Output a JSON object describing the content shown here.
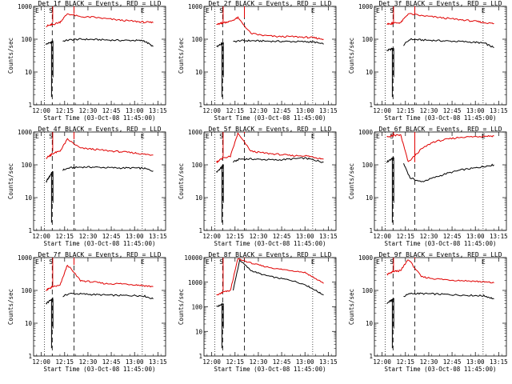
{
  "chart_data": [
    {
      "type": "line",
      "title": "Det 1f BLACK = Events, RED = LLD",
      "xlabel": "Start Time (03-Oct-08 11:45:00)",
      "ylabel": "Counts/sec",
      "ylog": true,
      "ylim": [
        1,
        1000
      ],
      "yticks": [
        "1",
        "10",
        "100",
        "1000"
      ],
      "xlim": [
        11.917,
        13.333
      ],
      "xticks": [
        "12:00",
        "12:15",
        "12:30",
        "12:45",
        "13:00",
        "13:15"
      ],
      "markers": [
        "E",
        "S",
        "E"
      ],
      "series": [
        {
          "name": "Events",
          "color": "#000000",
          "x": [
            12.05,
            12.1,
            12.12,
            12.2,
            12.3,
            12.42,
            12.55,
            12.7,
            12.85,
            13.0,
            13.1,
            13.2
          ],
          "y": [
            70,
            80,
            85,
            85,
            95,
            100,
            98,
            95,
            92,
            92,
            90,
            60
          ]
        },
        {
          "name": "LLD",
          "color": "#e00000",
          "x": [
            12.05,
            12.1,
            12.12,
            12.2,
            12.28,
            12.42,
            12.55,
            12.7,
            12.85,
            13.0,
            13.1,
            13.2
          ],
          "y": [
            250,
            270,
            280,
            330,
            600,
            480,
            470,
            420,
            380,
            350,
            330,
            320
          ]
        }
      ]
    },
    {
      "type": "line",
      "title": "Det 2f BLACK = Events, RED = LLD",
      "xlabel": "Start Time (03-Oct-08 11:45:00)",
      "ylabel": "Counts/sec",
      "ylog": true,
      "ylim": [
        1,
        1000
      ],
      "yticks": [
        "1",
        "10",
        "100",
        "1000"
      ],
      "xlim": [
        11.917,
        13.333
      ],
      "xticks": [
        "12:00",
        "12:15",
        "12:30",
        "12:45",
        "13:00",
        "13:15"
      ],
      "markers": [
        "E",
        "S",
        "E"
      ],
      "series": [
        {
          "name": "Events",
          "color": "#000000",
          "x": [
            12.05,
            12.1,
            12.12,
            12.2,
            12.3,
            12.42,
            12.55,
            12.7,
            12.85,
            13.0,
            13.1,
            13.2
          ],
          "y": [
            60,
            70,
            75,
            80,
            90,
            90,
            88,
            86,
            85,
            84,
            82,
            70
          ]
        },
        {
          "name": "LLD",
          "color": "#e00000",
          "x": [
            12.05,
            12.1,
            12.12,
            12.2,
            12.28,
            12.42,
            12.55,
            12.7,
            12.85,
            13.0,
            13.1,
            13.2
          ],
          "y": [
            280,
            300,
            320,
            350,
            450,
            150,
            130,
            120,
            120,
            115,
            110,
            100
          ]
        }
      ]
    },
    {
      "type": "line",
      "title": "Det 3f BLACK = Events, RED = LLD",
      "xlabel": "Start Time (03-Oct-08 11:45:00)",
      "ylabel": "Counts/sec",
      "ylog": true,
      "ylim": [
        1,
        1000
      ],
      "yticks": [
        "1",
        "10",
        "100",
        "1000"
      ],
      "xlim": [
        11.917,
        13.333
      ],
      "xticks": [
        "12:00",
        "12:15",
        "12:30",
        "12:45",
        "13:00",
        "13:15"
      ],
      "markers": [
        "E",
        "S",
        "E"
      ],
      "series": [
        {
          "name": "Events",
          "color": "#000000",
          "x": [
            12.05,
            12.1,
            12.12,
            12.2,
            12.3,
            12.42,
            12.55,
            12.7,
            12.85,
            13.0,
            13.1,
            13.2
          ],
          "y": [
            45,
            50,
            52,
            55,
            100,
            95,
            92,
            88,
            85,
            80,
            75,
            55
          ]
        },
        {
          "name": "LLD",
          "color": "#e00000",
          "x": [
            12.05,
            12.1,
            12.12,
            12.2,
            12.28,
            12.42,
            12.55,
            12.7,
            12.85,
            13.0,
            13.1,
            13.2
          ],
          "y": [
            280,
            300,
            310,
            320,
            600,
            520,
            480,
            430,
            390,
            350,
            320,
            300
          ]
        }
      ]
    },
    {
      "type": "line",
      "title": "Det 4f BLACK = Events, RED = LLD",
      "xlabel": "Start Time (03-Oct-08 11:45:00)",
      "ylabel": "Counts/sec",
      "ylog": true,
      "ylim": [
        1,
        1000
      ],
      "yticks": [
        "1",
        "10",
        "100",
        "1000"
      ],
      "xlim": [
        11.917,
        13.333
      ],
      "xticks": [
        "12:00",
        "12:15",
        "12:30",
        "12:45",
        "13:00",
        "13:15"
      ],
      "markers": [
        "E",
        "S",
        "E"
      ],
      "series": [
        {
          "name": "Events",
          "color": "#000000",
          "x": [
            12.05,
            12.1,
            12.12,
            12.2,
            12.3,
            12.42,
            12.55,
            12.7,
            12.85,
            13.0,
            13.1,
            13.2
          ],
          "y": [
            30,
            50,
            60,
            65,
            80,
            85,
            85,
            82,
            80,
            80,
            78,
            65
          ]
        },
        {
          "name": "LLD",
          "color": "#e00000",
          "x": [
            12.05,
            12.1,
            12.12,
            12.2,
            12.28,
            12.42,
            12.55,
            12.7,
            12.85,
            13.0,
            13.1,
            13.2
          ],
          "y": [
            160,
            200,
            220,
            260,
            600,
            320,
            300,
            270,
            250,
            230,
            210,
            200
          ]
        }
      ]
    },
    {
      "type": "line",
      "title": "Det 5f BLACK = Events, RED = LLD",
      "xlabel": "Start Time (03-Oct-08 11:45:00)",
      "ylabel": "Counts/sec",
      "ylog": true,
      "ylim": [
        1,
        1000
      ],
      "yticks": [
        "1",
        "10",
        "100",
        "1000"
      ],
      "xlim": [
        11.917,
        13.333
      ],
      "xticks": [
        "12:00",
        "12:15",
        "12:30",
        "12:45",
        "13:00",
        "13:15"
      ],
      "markers": [
        "E",
        "S",
        "E"
      ],
      "series": [
        {
          "name": "Events",
          "color": "#000000",
          "x": [
            12.05,
            12.1,
            12.12,
            12.2,
            12.3,
            12.42,
            12.55,
            12.7,
            12.85,
            13.0,
            13.1,
            13.2
          ],
          "y": [
            60,
            80,
            95,
            110,
            150,
            150,
            145,
            140,
            150,
            160,
            140,
            120
          ]
        },
        {
          "name": "LLD",
          "color": "#e00000",
          "x": [
            12.05,
            12.1,
            12.12,
            12.2,
            12.28,
            12.42,
            12.55,
            12.7,
            12.85,
            13.0,
            13.1,
            13.2
          ],
          "y": [
            120,
            150,
            160,
            180,
            900,
            260,
            230,
            210,
            190,
            190,
            170,
            150
          ]
        }
      ]
    },
    {
      "type": "line",
      "title": "Det 6f BLACK = Events, RED = LLD",
      "xlabel": "Start Time (03-Oct-08 11:45:00)",
      "ylabel": "Counts/sec",
      "ylog": true,
      "ylim": [
        1,
        1000
      ],
      "yticks": [
        "1",
        "10",
        "100",
        "1000"
      ],
      "xlim": [
        11.917,
        13.333
      ],
      "xticks": [
        "12:00",
        "12:15",
        "12:30",
        "12:45",
        "13:00",
        "13:15"
      ],
      "markers": [
        "E",
        "S",
        "E"
      ],
      "series": [
        {
          "name": "Events",
          "color": "#000000",
          "x": [
            12.05,
            12.1,
            12.12,
            12.2,
            12.3,
            12.42,
            12.55,
            12.7,
            12.85,
            13.0,
            13.1,
            13.2
          ],
          "y": [
            120,
            150,
            160,
            170,
            40,
            30,
            40,
            55,
            70,
            80,
            90,
            100
          ]
        },
        {
          "name": "LLD",
          "color": "#e00000",
          "x": [
            12.05,
            12.1,
            12.12,
            12.2,
            12.28,
            12.42,
            12.55,
            12.7,
            12.85,
            13.0,
            13.1,
            13.2
          ],
          "y": [
            700,
            750,
            780,
            800,
            120,
            300,
            500,
            600,
            700,
            720,
            750,
            760
          ]
        }
      ]
    },
    {
      "type": "line",
      "title": "Det 7f BLACK = Events, RED = LLD",
      "xlabel": "Start Time (03-Oct-08 11:45:00)",
      "ylabel": "Counts/sec",
      "ylog": true,
      "ylim": [
        1,
        1000
      ],
      "yticks": [
        "1",
        "10",
        "100",
        "1000"
      ],
      "xlim": [
        11.917,
        13.333
      ],
      "xticks": [
        "12:00",
        "12:15",
        "12:30",
        "12:45",
        "13:00",
        "13:15"
      ],
      "markers": [
        "E",
        "S",
        "E"
      ],
      "series": [
        {
          "name": "Events",
          "color": "#000000",
          "x": [
            12.05,
            12.1,
            12.12,
            12.2,
            12.3,
            12.42,
            12.55,
            12.7,
            12.85,
            13.0,
            13.1,
            13.2
          ],
          "y": [
            40,
            50,
            55,
            60,
            80,
            78,
            75,
            72,
            70,
            70,
            68,
            55
          ]
        },
        {
          "name": "LLD",
          "color": "#e00000",
          "x": [
            12.05,
            12.1,
            12.12,
            12.2,
            12.28,
            12.42,
            12.55,
            12.7,
            12.85,
            13.0,
            13.1,
            13.2
          ],
          "y": [
            100,
            120,
            130,
            140,
            600,
            200,
            180,
            160,
            160,
            150,
            140,
            130
          ]
        }
      ]
    },
    {
      "type": "line",
      "title": "Det 8f BLACK = Events, RED = LLD",
      "xlabel": "Start Time (03-Oct-08 11:45:00)",
      "ylabel": "Counts/sec",
      "ylog": true,
      "ylim": [
        1,
        10000
      ],
      "yticks": [
        "1",
        "10",
        "100",
        "1000",
        "10000"
      ],
      "xlim": [
        11.917,
        13.333
      ],
      "xticks": [
        "12:00",
        "12:15",
        "12:30",
        "12:45",
        "13:00",
        "13:15"
      ],
      "markers": [
        "E",
        "S",
        "E"
      ],
      "series": [
        {
          "name": "Events",
          "color": "#000000",
          "x": [
            12.05,
            12.1,
            12.12,
            12.2,
            12.3,
            12.42,
            12.55,
            12.7,
            12.85,
            13.0,
            13.1,
            13.2
          ],
          "y": [
            100,
            120,
            130,
            140,
            8000,
            3000,
            2000,
            1500,
            1200,
            800,
            500,
            300
          ]
        },
        {
          "name": "LLD",
          "color": "#e00000",
          "x": [
            12.05,
            12.1,
            12.12,
            12.2,
            12.28,
            12.42,
            12.55,
            12.7,
            12.85,
            13.0,
            13.1,
            13.2
          ],
          "y": [
            300,
            350,
            400,
            450,
            9000,
            6000,
            4500,
            3500,
            3000,
            2500,
            1500,
            900
          ]
        }
      ]
    },
    {
      "type": "line",
      "title": "Det 9f BLACK = Events, RED = LLD",
      "xlabel": "Start Time (03-Oct-08 11:45:00)",
      "ylabel": "Counts/sec",
      "ylog": true,
      "ylim": [
        1,
        1000
      ],
      "yticks": [
        "1",
        "10",
        "100",
        "1000"
      ],
      "xlim": [
        11.917,
        13.333
      ],
      "xticks": [
        "12:00",
        "12:15",
        "12:30",
        "12:45",
        "13:00",
        "13:15"
      ],
      "markers": [
        "E",
        "S",
        "E"
      ],
      "series": [
        {
          "name": "Events",
          "color": "#000000",
          "x": [
            12.05,
            12.1,
            12.12,
            12.2,
            12.3,
            12.42,
            12.55,
            12.7,
            12.85,
            13.0,
            13.1,
            13.2
          ],
          "y": [
            40,
            50,
            55,
            60,
            80,
            80,
            78,
            75,
            72,
            70,
            68,
            55
          ]
        },
        {
          "name": "LLD",
          "color": "#e00000",
          "x": [
            12.05,
            12.1,
            12.12,
            12.2,
            12.28,
            12.42,
            12.55,
            12.7,
            12.85,
            13.0,
            13.1,
            13.2
          ],
          "y": [
            300,
            350,
            380,
            400,
            900,
            260,
            230,
            210,
            200,
            190,
            180,
            170
          ]
        }
      ]
    }
  ]
}
